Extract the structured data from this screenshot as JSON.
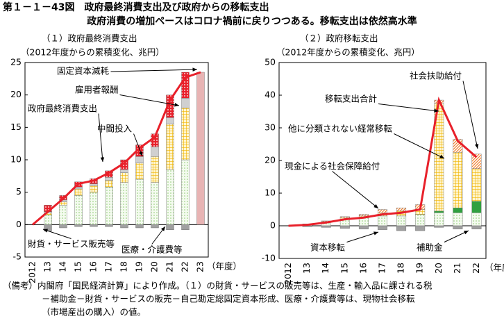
{
  "title": "第１－１－43図　政府最終消費支出及び政府からの移転支出",
  "subtitle": "政府消費の増加ペースはコロナ禍前に戻りつつある。移転支出は依然高水準",
  "notes": [
    "（備考）内閣府「国民経済計算」により作成。（１）の財貨・サービスの販売等は、生産・輸入品に課される税",
    "－補助金－財貨・サービスの販売－自己勘定総固定資本形成、医療・介護費等は、現物社会移転",
    "（市場産出の購入）の値。"
  ],
  "chart_data": [
    {
      "type": "bar",
      "title": "（１）政府最終消費支出",
      "y_label": "（2012年度からの累積変化、兆円）",
      "x_label": "（年度）",
      "categories": [
        "2012",
        "13",
        "14",
        "15",
        "16",
        "17",
        "18",
        "19",
        "20",
        "21",
        "22",
        "23"
      ],
      "ylim": [
        -5,
        25
      ],
      "yticks": [
        -5,
        0,
        5,
        10,
        15,
        20,
        25
      ],
      "series": [
        {
          "name": "医療・介護費等",
          "color": "#8cc870",
          "pattern": "dots",
          "values": [
            0,
            1.5,
            3,
            4.5,
            5,
            5.8,
            6.5,
            7,
            6.5,
            8.5,
            10,
            null
          ]
        },
        {
          "name": "財貨・サービス販売等",
          "color": "#a0a0a0",
          "pattern": "solid",
          "values": [
            0,
            -1,
            -0.5,
            -0.3,
            -0.3,
            -0.3,
            -0.5,
            -0.5,
            -0.5,
            -0.8,
            -0.8,
            null
          ]
        },
        {
          "name": "中間投入",
          "color": "#f0b400",
          "pattern": "grid",
          "values": [
            0,
            0.3,
            0.5,
            1,
            1,
            1,
            1.5,
            2.5,
            4,
            7,
            8,
            null
          ]
        },
        {
          "name": "雇用者報酬",
          "color": "#d0d0d0",
          "pattern": "solid",
          "values": [
            0,
            0.2,
            0.3,
            0.3,
            0.3,
            0.5,
            0.5,
            1,
            1.5,
            1,
            1.5,
            null
          ]
        },
        {
          "name": "固定資本減耗",
          "color": "#e8202a",
          "pattern": "reddots",
          "values": [
            0,
            1,
            0.7,
            0.8,
            0.8,
            1,
            1.5,
            1.8,
            2,
            3.5,
            4,
            null
          ]
        },
        {
          "color": "#e8b4b4",
          "pattern": "solid",
          "values": [
            null,
            null,
            null,
            null,
            null,
            null,
            null,
            null,
            null,
            null,
            null,
            23.5
          ]
        },
        {
          "name": "政府最終消費支出",
          "type": "line",
          "color": "#e8202a",
          "values": [
            0,
            2,
            4,
            6.3,
            6.8,
            8,
            9.5,
            11.8,
            13.5,
            19.2,
            22.7,
            23.5
          ]
        }
      ]
    },
    {
      "type": "bar",
      "title": "（２）政府移転支出",
      "y_label": "（2012年度からの累積変化、兆円）",
      "x_label": "（年度）",
      "categories": [
        "2012",
        "13",
        "14",
        "15",
        "16",
        "17",
        "18",
        "19",
        "20",
        "21",
        "22"
      ],
      "ylim": [
        -10,
        50
      ],
      "yticks": [
        -10,
        0,
        10,
        20,
        30,
        40,
        50
      ],
      "series": [
        {
          "name": "現金による社会保障給付",
          "color": "#8cc870",
          "pattern": "dots",
          "values": [
            0,
            0.3,
            1,
            2,
            2.5,
            3,
            3,
            3.5,
            4,
            4,
            4
          ]
        },
        {
          "name": "資本移転",
          "color": "#a0a0a0",
          "pattern": "solid",
          "values": [
            0,
            -0.3,
            -0.5,
            -0.8,
            -1,
            -1.2,
            -1.5,
            -1.5,
            -0.5,
            -1,
            -1
          ]
        },
        {
          "name": "補助金",
          "color": "#30a040",
          "pattern": "solid",
          "values": [
            0,
            0,
            0,
            0,
            0,
            0,
            0,
            0,
            0.5,
            1.5,
            3.5
          ]
        },
        {
          "name": "他に分類されない経常移転",
          "color": "#f0b400",
          "pattern": "grid",
          "values": [
            0,
            0.2,
            0.3,
            0.5,
            0.5,
            1,
            1.5,
            1.5,
            33,
            17,
            10
          ]
        },
        {
          "name": "社会扶助給付",
          "color": "#f08030",
          "pattern": "stripes",
          "values": [
            0,
            0.1,
            0.2,
            0.3,
            0.5,
            1,
            1,
            1.5,
            1,
            4,
            4.5
          ]
        },
        {
          "name": "移転支出合計",
          "type": "line",
          "color": "#e8202a",
          "values": [
            0,
            0.3,
            1,
            2,
            2.5,
            3.5,
            4,
            5,
            38.5,
            26,
            21
          ]
        }
      ]
    }
  ]
}
